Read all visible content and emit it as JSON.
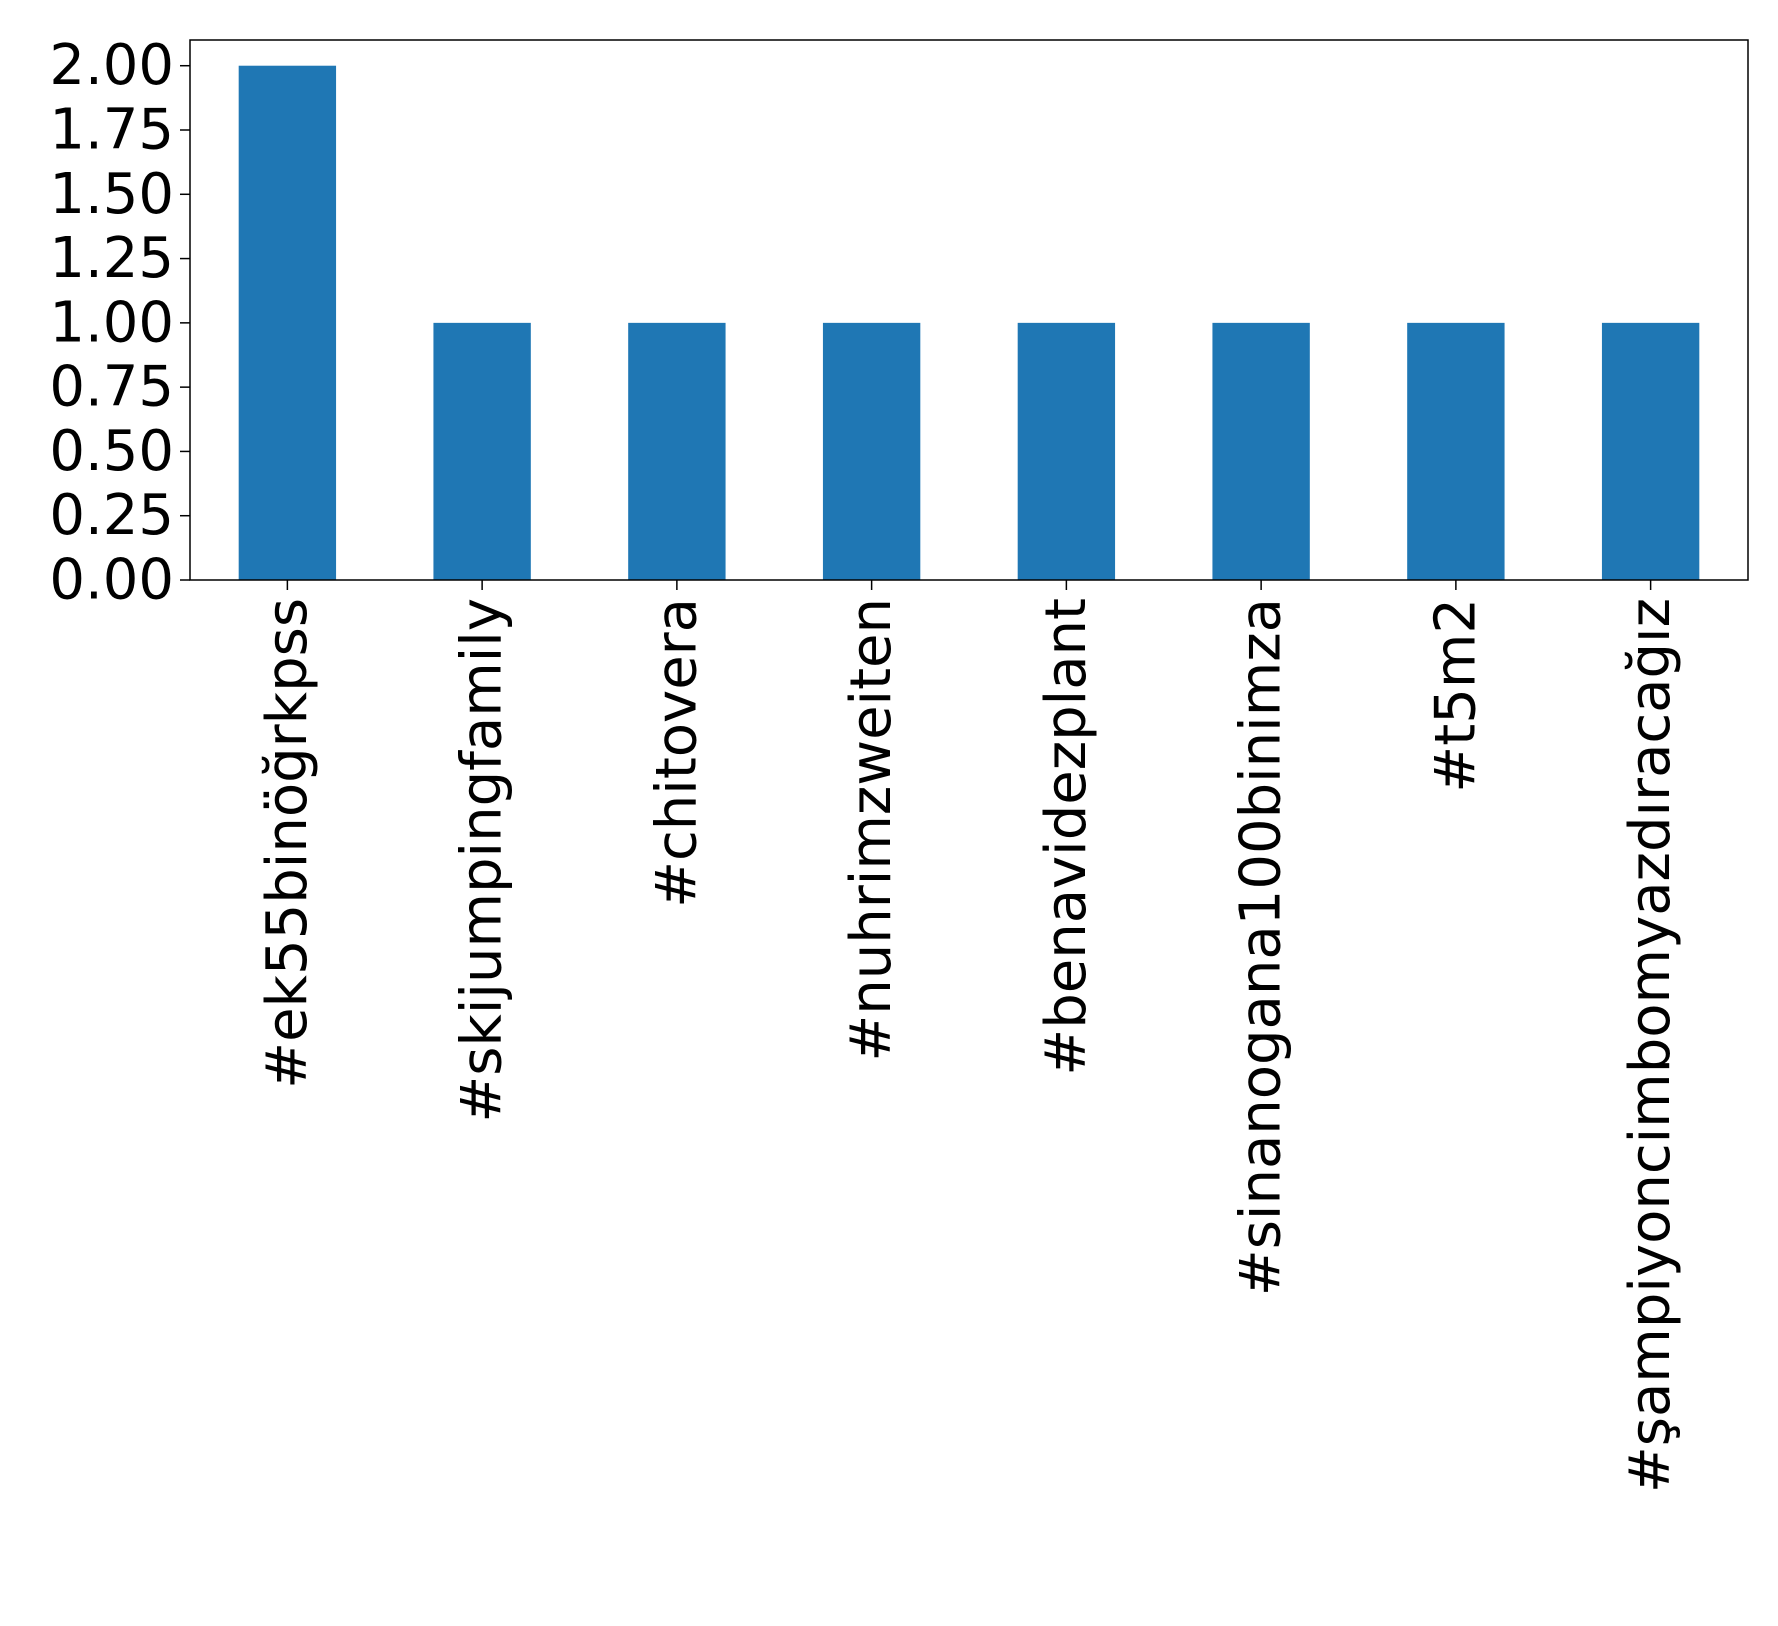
{
  "chart_data": {
    "type": "bar",
    "title": "",
    "xlabel": "",
    "ylabel": "",
    "categories": [
      "#ek55binöğrkpss",
      "#skijumpingfamily",
      "#chitovera",
      "#nuhrimzweiten",
      "#benavidezplant",
      "#sinanogana100binimza",
      "#t5m2",
      "#şampiyoncimbomyazdıracağız"
    ],
    "values": [
      2,
      1,
      1,
      1,
      1,
      1,
      1,
      1
    ],
    "ylim": [
      0,
      2.1
    ],
    "yticks": [
      "0.00",
      "0.25",
      "0.50",
      "0.75",
      "1.00",
      "1.25",
      "1.50",
      "1.75",
      "2.00"
    ],
    "bar_color": "#1f77b4",
    "grid": false,
    "legend": "none"
  }
}
